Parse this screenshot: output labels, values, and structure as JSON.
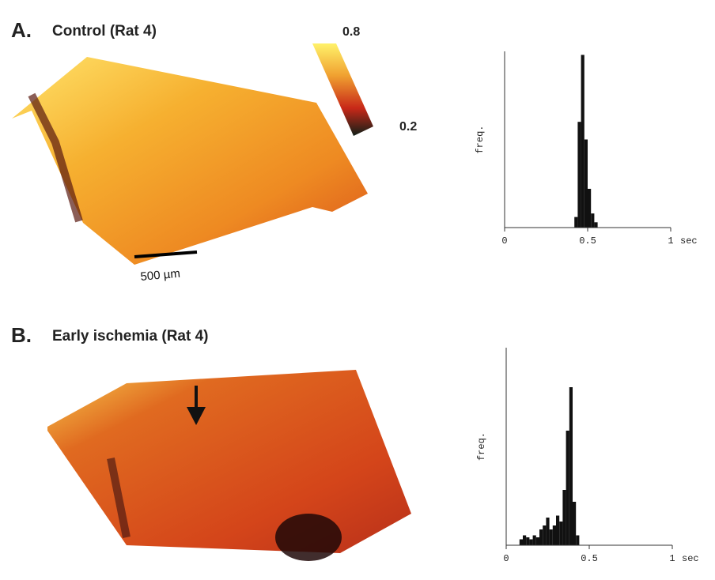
{
  "panels": [
    {
      "label": "A.",
      "title": "Control (Rat 4)"
    },
    {
      "label": "B.",
      "title": "Early ischemia (Rat 4)"
    }
  ],
  "colorbar_ticks": [
    0.8,
    0.2
  ],
  "scale_bar": "500 µm",
  "chart_data": [
    {
      "type": "histogram",
      "ylabel": "freq.",
      "xlabel": "sec",
      "color": "#111111",
      "bins": [
        0.42,
        0.44,
        0.46,
        0.48,
        0.5,
        0.52,
        0.54,
        0.56
      ],
      "values": [
        6,
        60,
        98,
        50,
        22,
        8,
        3
      ],
      "xlim": [
        0,
        1
      ],
      "xticks": [
        0,
        0.5,
        1
      ],
      "ylim": [
        0,
        100
      ]
    },
    {
      "type": "histogram",
      "ylabel": "freq.",
      "xlabel": "sec",
      "color": "#111111",
      "bins": [
        0.08,
        0.1,
        0.12,
        0.14,
        0.16,
        0.18,
        0.2,
        0.22,
        0.24,
        0.26,
        0.28,
        0.3,
        0.32,
        0.34,
        0.36,
        0.38,
        0.4,
        0.42,
        0.44
      ],
      "values": [
        3,
        5,
        4,
        3,
        5,
        4,
        8,
        10,
        14,
        8,
        10,
        15,
        12,
        28,
        58,
        80,
        22,
        5
      ],
      "xlim": [
        0,
        1
      ],
      "xticks": [
        0,
        0.5,
        1
      ],
      "ylim": [
        0,
        100
      ]
    }
  ]
}
